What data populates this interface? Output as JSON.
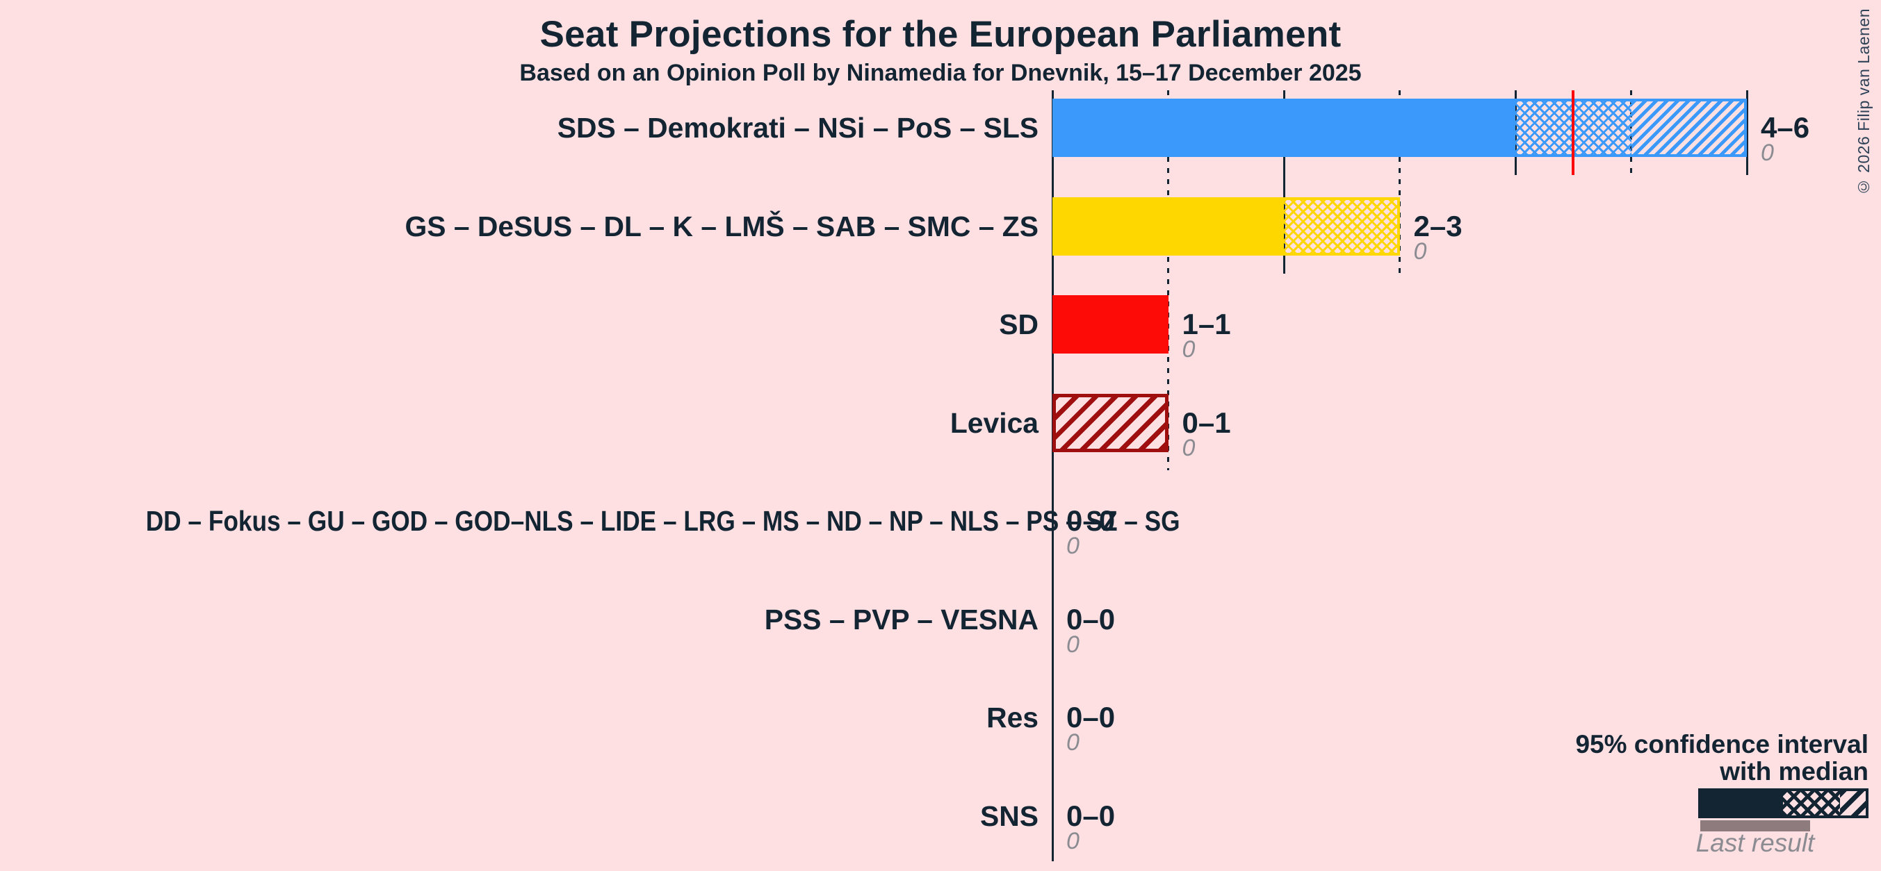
{
  "chart_data": {
    "type": "bar",
    "orientation": "horizontal",
    "title": "Seat Projections for the European Parliament",
    "subtitle": "Based on an Opinion Poll by Ninamedia for Dnevnik, 15–17 December 2025",
    "x_axis": {
      "min": 0,
      "max": 6,
      "majority_line": 4.5,
      "gridline_seats": [
        1,
        2,
        3,
        4,
        5,
        6
      ],
      "grid": "dotted-odd-solid-even"
    },
    "rows": [
      {
        "label": "SDS – Demokrati – NSi – PoS – SLS",
        "low": 4,
        "median": 5,
        "high": 6,
        "ci_text": "4–6",
        "last_result": "0",
        "color": "#3b99fc"
      },
      {
        "label": "GS – DeSUS – DL – K – LMŠ – SAB – SMC – ZS",
        "low": 2,
        "median": 3,
        "high": 3,
        "ci_text": "2–3",
        "last_result": "0",
        "color": "#ffd700"
      },
      {
        "label": "SD",
        "low": 1,
        "median": 1,
        "high": 1,
        "ci_text": "1–1",
        "last_result": "0",
        "color": "#fd0b06"
      },
      {
        "label": "Levica",
        "low": 0,
        "median": 0,
        "high": 1,
        "ci_text": "0–1",
        "last_result": "0",
        "color": "#a00f10"
      },
      {
        "label": "DD – Fokus – GU – GOD – GOD–NLS – LIDE – LRG – MS – ND – NP – NLS – PS – SZ – SG",
        "low": 0,
        "median": 0,
        "high": 0,
        "ci_text": "0–0",
        "last_result": "0",
        "color": "#132433"
      },
      {
        "label": "PSS – PVP – VESNA",
        "low": 0,
        "median": 0,
        "high": 0,
        "ci_text": "0–0",
        "last_result": "0",
        "color": "#132433"
      },
      {
        "label": "Res",
        "low": 0,
        "median": 0,
        "high": 0,
        "ci_text": "0–0",
        "last_result": "0",
        "color": "#132433"
      },
      {
        "label": "SNS",
        "low": 0,
        "median": 0,
        "high": 0,
        "ci_text": "0–0",
        "last_result": "0",
        "color": "#132433"
      }
    ]
  },
  "legend": {
    "ci_label_line1": "95% confidence interval",
    "ci_label_line2": "with median",
    "last_result_label": "Last result"
  },
  "copyright": "© 2026 Filip van Laenen",
  "colors": {
    "bg": "#fee0e3",
    "navy": "#132433",
    "gray": "#8b8b92",
    "taupe": "#8d7b7d",
    "majority": "#fa0a0a",
    "copyright": "#2d4257"
  }
}
